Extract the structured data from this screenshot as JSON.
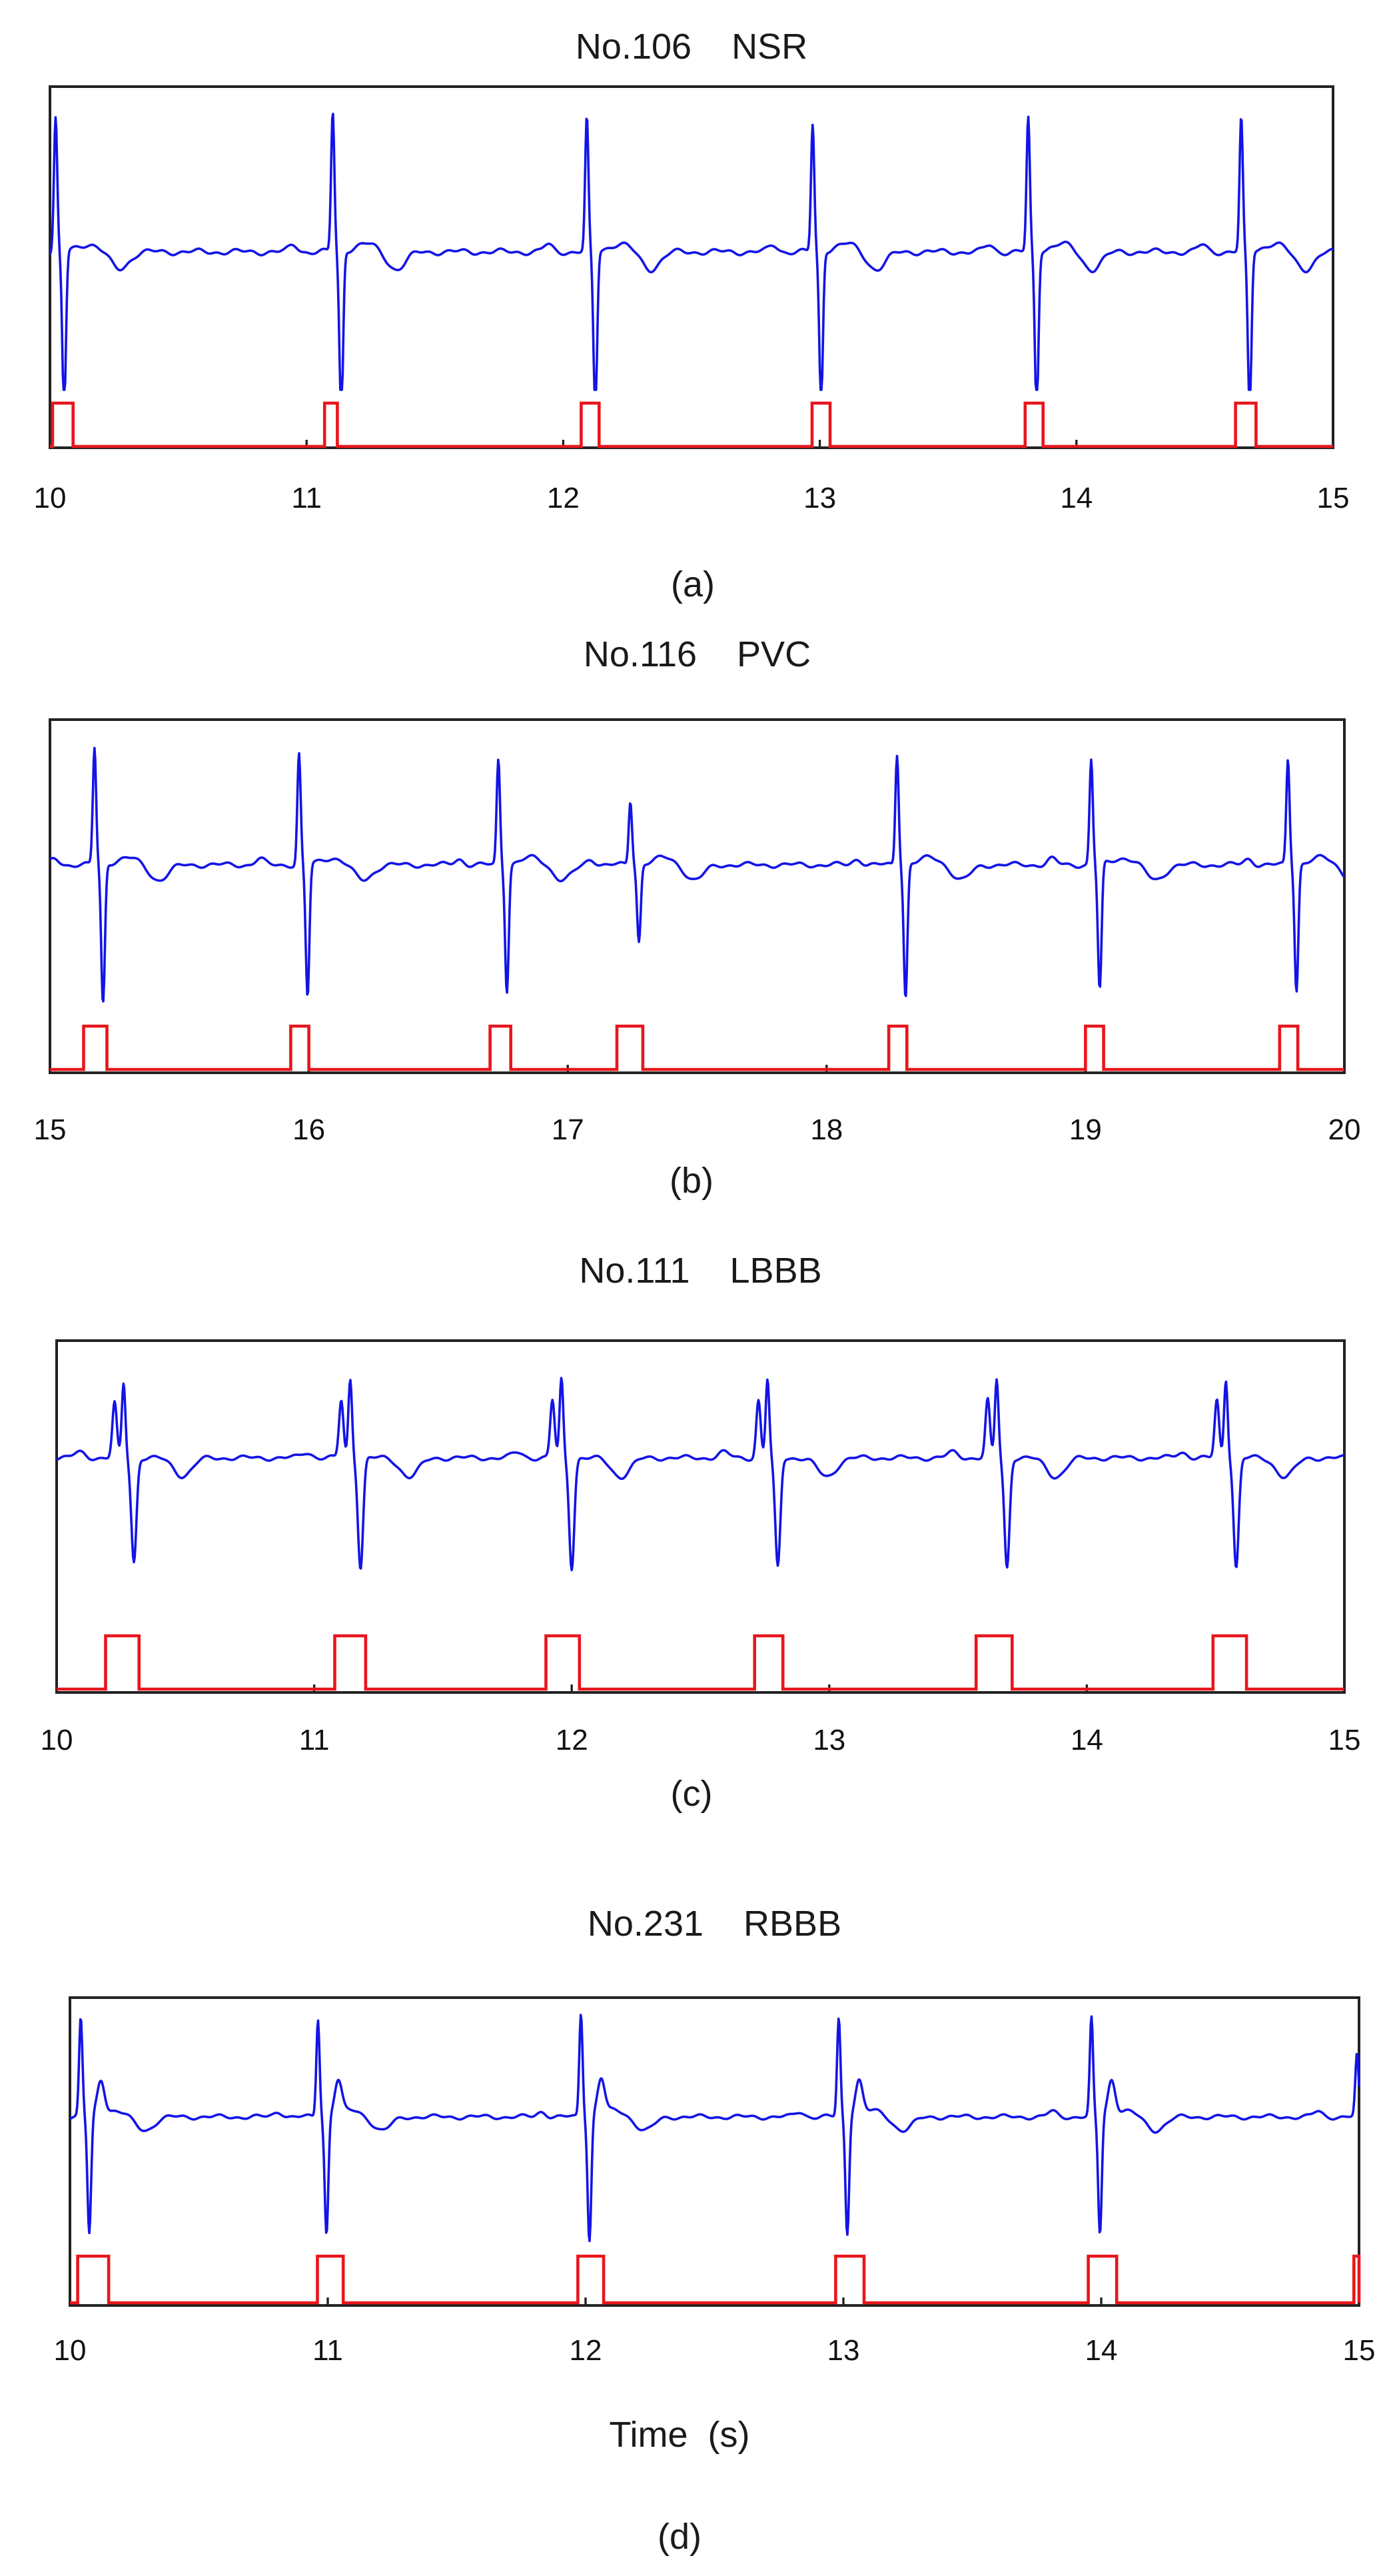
{
  "chart_data": [
    {
      "type": "line",
      "title": "No.106    NSR",
      "caption": "(a)",
      "xlabel": "",
      "xlim": [
        10,
        15
      ],
      "xticks": [
        10,
        11,
        12,
        13,
        14,
        15
      ],
      "series": [
        {
          "color": "#1414e6",
          "beats": [
            10.03,
            11.11,
            12.1,
            12.98,
            13.82,
            14.65
          ],
          "beat_amplitude": [
            1.0,
            1.05,
            1.0,
            0.95,
            1.0,
            1.0
          ]
        },
        {
          "color": "#e8161c",
          "pulses": [
            [
              10.01,
              10.09
            ],
            [
              11.07,
              11.12
            ],
            [
              12.07,
              12.14
            ],
            [
              12.97,
              13.04
            ],
            [
              13.8,
              13.87
            ],
            [
              14.62,
              14.7
            ]
          ]
        }
      ],
      "grid": false
    },
    {
      "type": "line",
      "title": "No.116    PVC",
      "caption": "(b)",
      "xlabel": "",
      "xlim": [
        15,
        20
      ],
      "xticks": [
        15,
        16,
        17,
        18,
        19,
        20
      ],
      "series": [
        {
          "color": "#1414e6",
          "beats": [
            15.18,
            15.97,
            16.74,
            17.25,
            18.28,
            19.03,
            19.79
          ],
          "beat_amplitude": [
            1.0,
            0.95,
            0.9,
            0.55,
            0.95,
            0.9,
            0.9
          ]
        },
        {
          "color": "#e8161c",
          "pulses": [
            [
              15.13,
              15.22
            ],
            [
              15.93,
              16.0
            ],
            [
              16.7,
              16.78
            ],
            [
              17.19,
              17.29
            ],
            [
              18.24,
              18.31
            ],
            [
              19.0,
              19.07
            ],
            [
              19.75,
              19.82
            ]
          ]
        }
      ],
      "grid": false
    },
    {
      "type": "line",
      "title": "No.111    LBBB",
      "caption": "(c)",
      "xlabel": "",
      "xlim": [
        10,
        15
      ],
      "xticks": [
        10,
        11,
        12,
        13,
        14,
        15
      ],
      "series": [
        {
          "color": "#1414e6",
          "beats": [
            10.27,
            11.15,
            11.97,
            12.77,
            13.66,
            14.55
          ],
          "beat_amplitude": [
            0.9,
            0.95,
            0.95,
            0.95,
            0.95,
            0.95
          ]
        },
        {
          "color": "#e8161c",
          "pulses": [
            [
              10.19,
              10.32
            ],
            [
              11.08,
              11.2
            ],
            [
              11.9,
              12.03
            ],
            [
              12.71,
              12.82
            ],
            [
              13.57,
              13.71
            ],
            [
              14.49,
              14.62
            ]
          ]
        }
      ],
      "grid": false
    },
    {
      "type": "line",
      "title": "No.231    RBBB",
      "caption": "(d)",
      "xlabel": "Time  (s)",
      "xlim": [
        10,
        15
      ],
      "xticks": [
        10,
        11,
        12,
        13,
        14,
        15
      ],
      "series": [
        {
          "color": "#1414e6",
          "beats": [
            10.05,
            10.97,
            11.99,
            12.99,
            13.97,
            15.0
          ],
          "beat_amplitude": [
            0.95,
            0.95,
            1.0,
            0.95,
            0.95,
            0.6
          ]
        },
        {
          "color": "#e8161c",
          "pulses": [
            [
              10.03,
              10.15
            ],
            [
              10.96,
              11.06
            ],
            [
              11.97,
              12.07
            ],
            [
              12.97,
              13.08
            ],
            [
              13.95,
              14.06
            ],
            [
              14.98,
              15.0
            ]
          ]
        }
      ],
      "grid": false
    }
  ]
}
